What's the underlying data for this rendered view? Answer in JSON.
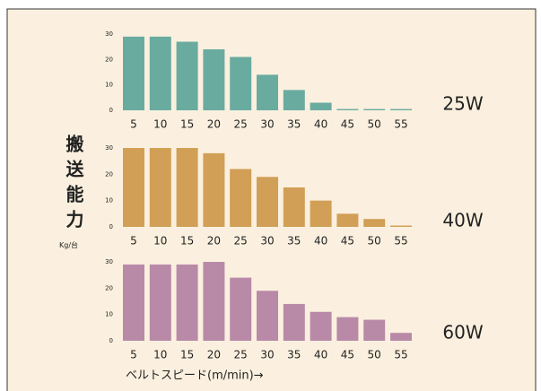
{
  "chart_data": [
    {
      "type": "bar",
      "ylabel": "搬送能力",
      "ylabel_unit": "Kg/台",
      "annotation": "25W",
      "categories": [
        "5",
        "10",
        "15",
        "20",
        "25",
        "30",
        "35",
        "40",
        "45",
        "50",
        "55"
      ],
      "values": [
        29,
        29,
        27,
        24,
        21,
        14,
        8,
        3,
        0.5,
        0.5,
        0.5
      ],
      "color": "#6aaba0",
      "ylim": [
        0,
        30
      ],
      "yticks": [
        0,
        10,
        20,
        30
      ]
    },
    {
      "type": "bar",
      "annotation": "40W",
      "categories": [
        "5",
        "10",
        "15",
        "20",
        "25",
        "30",
        "35",
        "40",
        "45",
        "50",
        "55"
      ],
      "values": [
        30,
        30,
        30,
        28,
        22,
        19,
        15,
        10,
        5,
        3,
        0.5
      ],
      "color": "#d19f55",
      "ylim": [
        0,
        30
      ],
      "yticks": [
        0,
        10,
        20,
        30
      ]
    },
    {
      "type": "bar",
      "annotation": "60W",
      "xlabel": "ベルトスピード(m/min)→",
      "categories": [
        "5",
        "10",
        "15",
        "20",
        "25",
        "30",
        "35",
        "40",
        "45",
        "50",
        "55"
      ],
      "values": [
        29,
        29,
        29,
        30,
        24,
        19,
        14,
        11,
        9,
        8,
        3
      ],
      "color": "#b98aa8",
      "ylim": [
        0,
        30
      ],
      "yticks": [
        0,
        10,
        20,
        30
      ]
    }
  ]
}
